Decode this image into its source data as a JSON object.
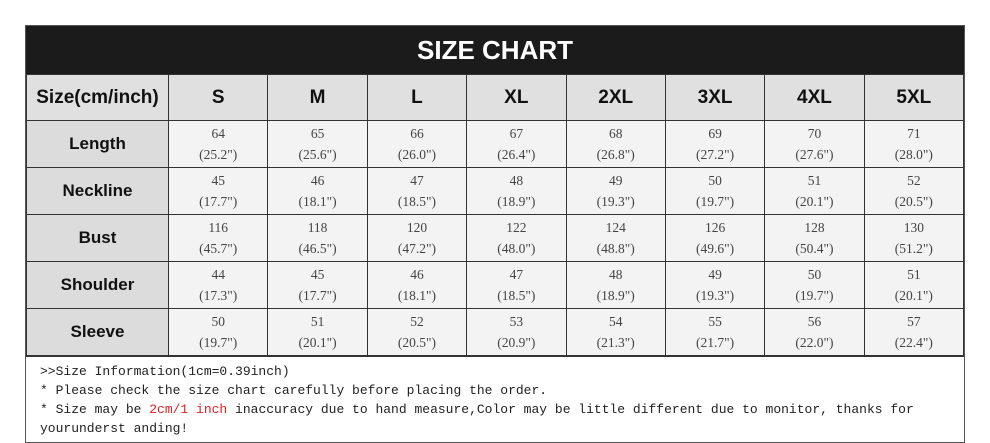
{
  "title": "SIZE CHART",
  "corner_header": "Size(cm/inch)",
  "sizes": [
    "S",
    "M",
    "L",
    "XL",
    "2XL",
    "3XL",
    "4XL",
    "5XL"
  ],
  "rows": [
    {
      "label": "Length",
      "cm": [
        "64",
        "65",
        "66",
        "67",
        "68",
        "69",
        "70",
        "71"
      ],
      "inch": [
        "(25.2\")",
        "(25.6\")",
        "(26.0\")",
        "(26.4\")",
        "(26.8\")",
        "(27.2\")",
        "(27.6\")",
        "(28.0\")"
      ]
    },
    {
      "label": "Neckline",
      "cm": [
        "45",
        "46",
        "47",
        "48",
        "49",
        "50",
        "51",
        "52"
      ],
      "inch": [
        "(17.7\")",
        "(18.1\")",
        "(18.5\")",
        "(18.9\")",
        "(19.3\")",
        "(19.7\")",
        "(20.1\")",
        "(20.5\")"
      ]
    },
    {
      "label": "Bust",
      "cm": [
        "116",
        "118",
        "120",
        "122",
        "124",
        "126",
        "128",
        "130"
      ],
      "inch": [
        "(45.7\")",
        "(46.5\")",
        "(47.2\")",
        "(48.0\")",
        "(48.8\")",
        "(49.6\")",
        "(50.4\")",
        "(51.2\")"
      ]
    },
    {
      "label": "Shoulder",
      "cm": [
        "44",
        "45",
        "46",
        "47",
        "48",
        "49",
        "50",
        "51"
      ],
      "inch": [
        "(17.3\")",
        "(17.7\")",
        "(18.1\")",
        "(18.5\")",
        "(18.9\")",
        "(19.3\")",
        "(19.7\")",
        "(20.1\")"
      ]
    },
    {
      "label": "Sleeve",
      "cm": [
        "50",
        "51",
        "52",
        "53",
        "54",
        "55",
        "56",
        "57"
      ],
      "inch": [
        "(19.7\")",
        "(20.1\")",
        "(20.5\")",
        "(20.9\")",
        "(21.3\")",
        "(21.7\")",
        "(22.0\")",
        "(22.4\")"
      ]
    }
  ],
  "notes": {
    "line1": ">>Size Information(1cm=0.39inch)",
    "line2": "* Please check the size chart carefully before placing the order.",
    "line3_pre": "* Size may be ",
    "line3_red": "2cm/1 inch",
    "line3_post": " inaccuracy due to hand measure,Color may be little different due to monitor, thanks for yourunderst anding!"
  },
  "colors": {
    "title_bg": "#1b1b1b",
    "highlight": "#e02020"
  }
}
